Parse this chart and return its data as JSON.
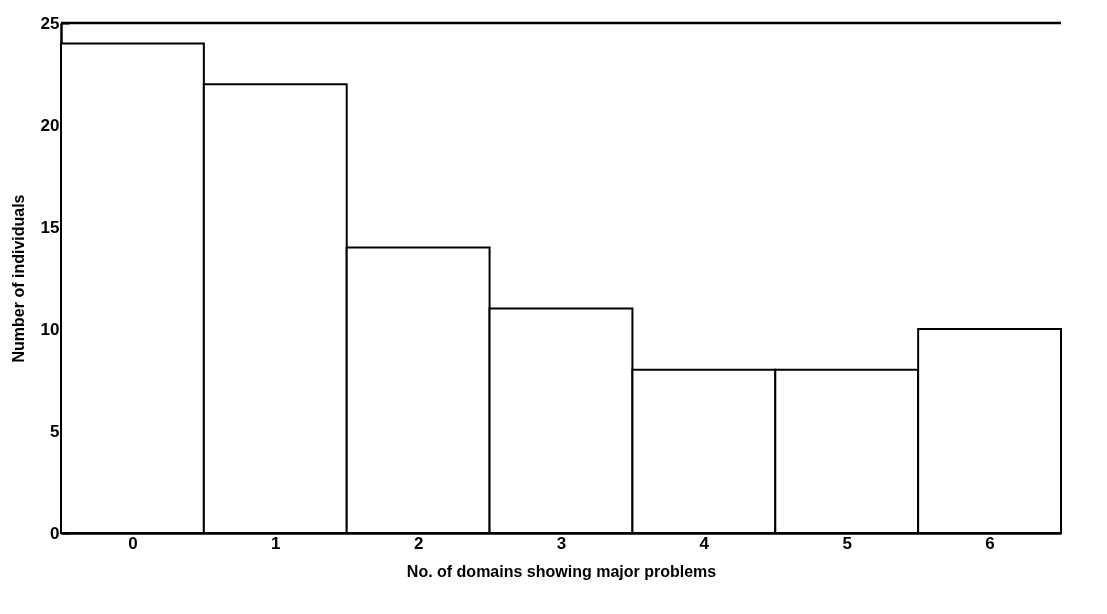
{
  "chart_data": {
    "type": "histogram",
    "xlabel": "No. of domains showing major problems",
    "ylabel": "Number of individuals",
    "bins": [
      -0.5,
      0.5,
      1.5,
      2.5,
      3.5,
      4.5,
      5.5,
      6.5
    ],
    "values": [
      24,
      22,
      14,
      11,
      8,
      8,
      10
    ],
    "color": "#ffffff",
    "xlim": [
      -0.5,
      6.5
    ],
    "xticks": [
      0,
      1,
      2,
      3,
      4,
      5,
      6
    ],
    "ylim": [
      0,
      25
    ],
    "yticks": [
      0,
      5,
      10,
      15,
      20,
      25
    ],
    "grid": false
  }
}
